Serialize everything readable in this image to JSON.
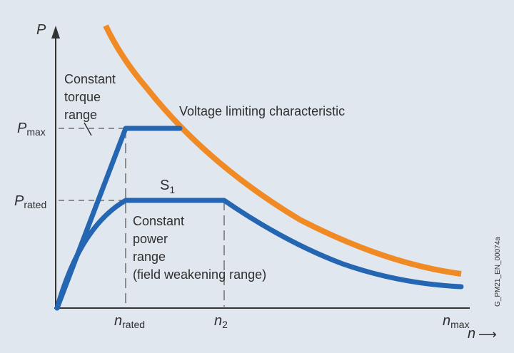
{
  "colors": {
    "background": "#e1e7ee",
    "axis": "#333333",
    "dashed_guides": "#8c8c8c",
    "blue_curves": "#2466b1",
    "orange_curve": "#f08a24"
  },
  "axes": {
    "y_symbol": "P",
    "x_symbol": "n",
    "x_arrow": "⟶"
  },
  "y_ticks": {
    "pmax": {
      "main": "P",
      "sub": "max"
    },
    "prated": {
      "main": "P",
      "sub": "rated"
    }
  },
  "x_ticks": {
    "nrated": {
      "main": "n",
      "sub": "rated"
    },
    "n2": {
      "main": "n",
      "sub": "2"
    },
    "nmax": {
      "main": "n",
      "sub": "max"
    }
  },
  "annotations": {
    "constant_torque": [
      "Constant",
      "torque",
      "range"
    ],
    "voltage_limit": "Voltage limiting characteristic",
    "s1": {
      "main": "S",
      "sub": "1"
    },
    "constant_power": [
      "Constant",
      "power",
      "range",
      "(field weakening range)"
    ],
    "figure_code": "G_PM21_EN_00074a"
  }
}
